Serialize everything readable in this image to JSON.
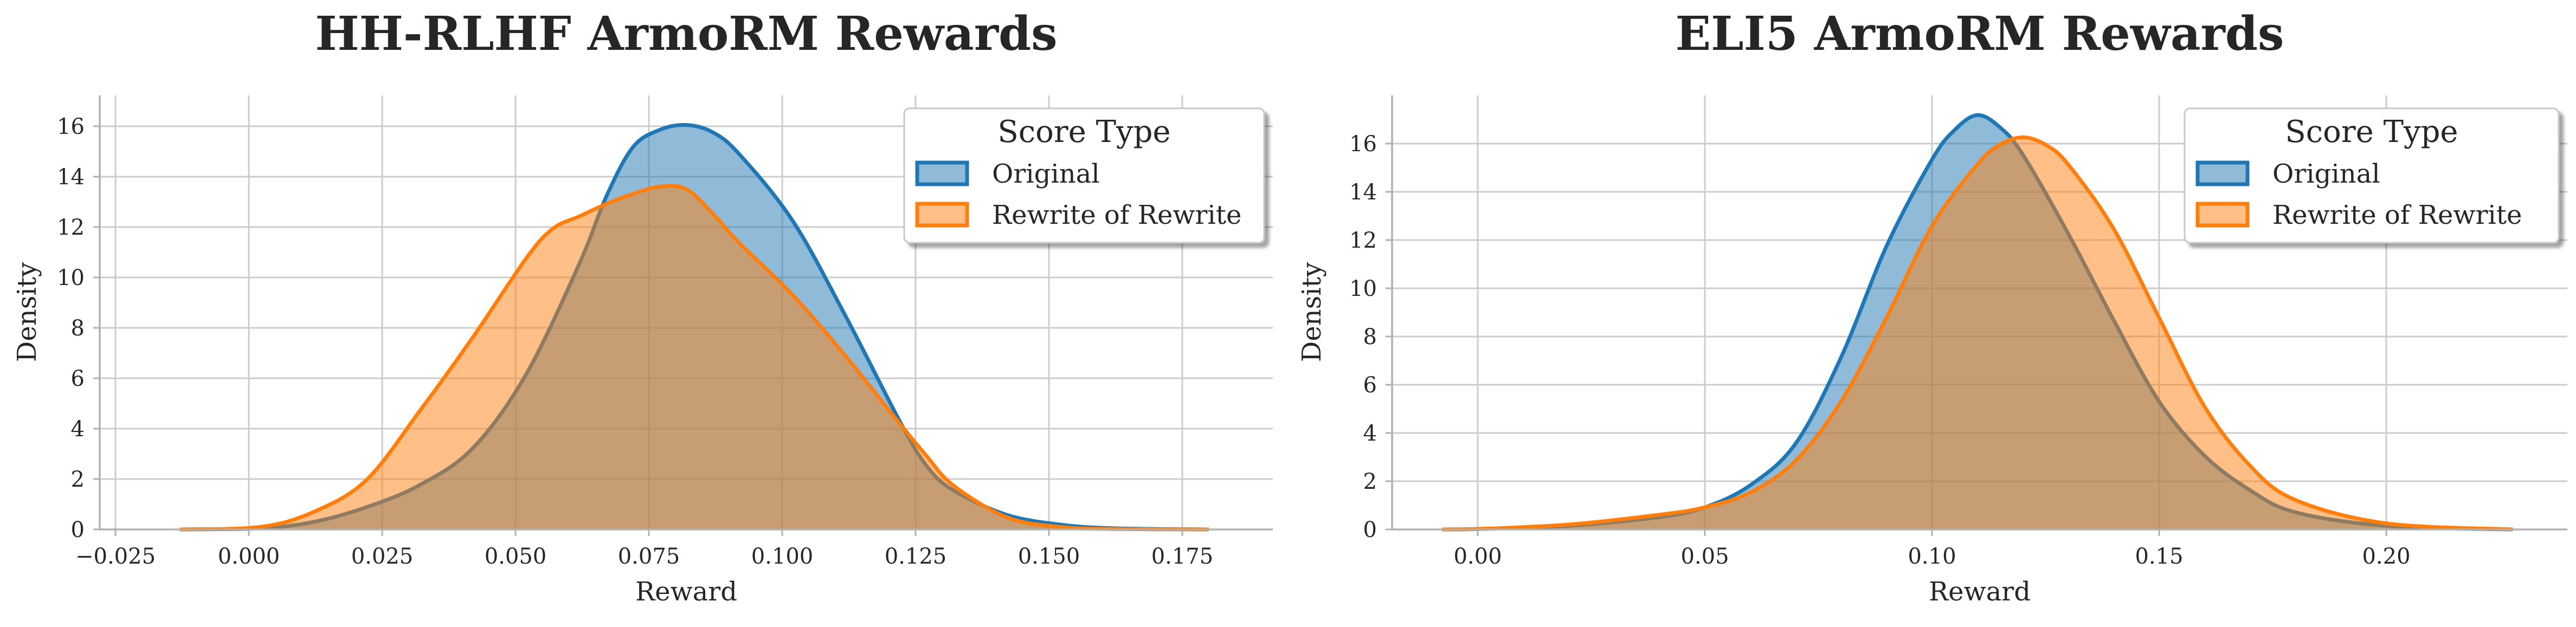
{
  "colors": {
    "original": "#1f77b4",
    "rewrite": "#ff7f0e"
  },
  "chart_data": [
    {
      "type": "area",
      "title": "HH-RLHF ArmoRM Rewards",
      "xlabel": "Reward",
      "ylabel": "Density",
      "xlim": [
        -0.03,
        0.19
      ],
      "ylim": [
        0,
        17.6
      ],
      "xticks": [
        -0.025,
        0.0,
        0.025,
        0.05,
        0.075,
        0.1,
        0.125,
        0.15,
        0.175
      ],
      "xtick_labels": [
        "−0.025",
        "0.000",
        "0.025",
        "0.050",
        "0.075",
        "0.100",
        "0.125",
        "0.150",
        "0.175"
      ],
      "yticks": [
        0,
        2,
        4,
        6,
        8,
        10,
        12,
        14,
        16
      ],
      "grid": true,
      "legend": {
        "title": "Score Type",
        "position": "top-right"
      },
      "series": [
        {
          "name": "Original",
          "x": [
            -0.015,
            0.0,
            0.01,
            0.02,
            0.03,
            0.04,
            0.05,
            0.06,
            0.065,
            0.07,
            0.075,
            0.08,
            0.085,
            0.09,
            0.1,
            0.11,
            0.12,
            0.125,
            0.13,
            0.14,
            0.15,
            0.16,
            0.178
          ],
          "y": [
            0,
            0.05,
            0.3,
            0.9,
            1.8,
            3.3,
            6.3,
            10.8,
            13.5,
            15.5,
            16.2,
            16.4,
            16.1,
            15.2,
            12.5,
            8.6,
            4.4,
            2.6,
            1.6,
            0.6,
            0.2,
            0.05,
            0
          ]
        },
        {
          "name": "Rewrite of Rewrite",
          "x": [
            -0.015,
            0.0,
            0.01,
            0.02,
            0.03,
            0.04,
            0.05,
            0.055,
            0.06,
            0.065,
            0.07,
            0.075,
            0.08,
            0.085,
            0.09,
            0.1,
            0.11,
            0.12,
            0.125,
            0.13,
            0.14,
            0.15,
            0.16,
            0.178
          ],
          "y": [
            0,
            0.1,
            0.7,
            2.0,
            4.8,
            7.8,
            11.0,
            12.2,
            12.7,
            13.2,
            13.6,
            13.9,
            13.8,
            12.8,
            11.6,
            9.5,
            7.0,
            4.3,
            3.0,
            1.8,
            0.5,
            0.1,
            0.02,
            0
          ]
        }
      ]
    },
    {
      "type": "area",
      "title": "ELI5 ArmoRM Rewards",
      "xlabel": "Reward",
      "ylabel": "Density",
      "xlim": [
        -0.019,
        0.24
      ],
      "ylim": [
        0,
        17.6
      ],
      "xticks": [
        0.0,
        0.05,
        0.1,
        0.15,
        0.2
      ],
      "xtick_labels": [
        "0.00",
        "0.05",
        "0.10",
        "0.15",
        "0.20"
      ],
      "yticks": [
        0,
        2,
        4,
        6,
        8,
        10,
        12,
        14,
        16
      ],
      "grid": true,
      "legend": {
        "title": "Score Type",
        "position": "top-right"
      },
      "series": [
        {
          "name": "Original",
          "x": [
            -0.008,
            0.0,
            0.02,
            0.04,
            0.05,
            0.06,
            0.07,
            0.08,
            0.09,
            0.1,
            0.105,
            0.11,
            0.115,
            0.12,
            0.13,
            0.14,
            0.15,
            0.16,
            0.17,
            0.18,
            0.2,
            0.228
          ],
          "y": [
            0,
            0.02,
            0.15,
            0.5,
            0.9,
            1.8,
            3.5,
            7.0,
            11.5,
            15.0,
            16.2,
            16.8,
            16.3,
            15.2,
            12.0,
            8.5,
            5.2,
            3.0,
            1.6,
            0.7,
            0.15,
            0
          ]
        },
        {
          "name": "Rewrite of Rewrite",
          "x": [
            -0.008,
            0.0,
            0.02,
            0.04,
            0.05,
            0.06,
            0.07,
            0.08,
            0.09,
            0.1,
            0.11,
            0.115,
            0.12,
            0.125,
            0.13,
            0.14,
            0.15,
            0.16,
            0.17,
            0.18,
            0.2,
            0.228
          ],
          "y": [
            0,
            0.02,
            0.2,
            0.6,
            0.9,
            1.5,
            2.8,
            5.2,
            8.6,
            12.3,
            14.8,
            15.6,
            15.9,
            15.6,
            14.8,
            12.2,
            8.6,
            5.0,
            2.6,
            1.2,
            0.25,
            0
          ]
        }
      ]
    }
  ]
}
